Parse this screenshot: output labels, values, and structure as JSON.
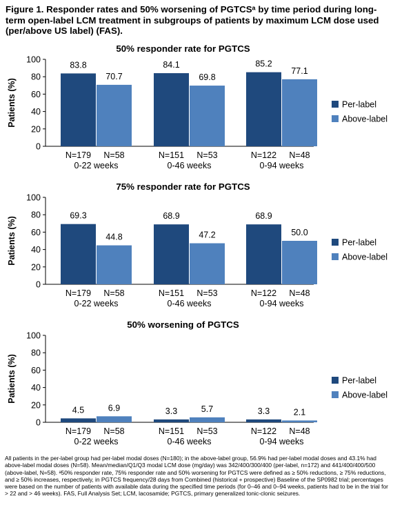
{
  "figure": {
    "title": "Figure 1. Responder rates and 50% worsening of PGTCSᵃ by time period during long-term open-label LCM treatment in subgroups of patients by maximum LCM dose used (per/above US label) (FAS).",
    "footnote": "All patients in the per-label group had per-label modal doses (N=180); in the above-label group, 56.9% had per-label modal doses and 43.1% had above-label modal doses (N=58). Mean/median/Q1/Q3 modal LCM dose (mg/day) was 342/400/300/400 (per-label, n=172) and 441/400/400/500 (above-label, N=58). ᵃ50% responder rate, 75% responder rate and 50% worsening for PGTCS were defined as ≥ 50% reductions, ≥ 75% reductions, and ≥ 50% increases, respectively, in PGTCS frequency/28 days from Combined (historical + prospective) Baseline of the SP0982 trial; percentages were based on the number of patients with available data during the specified time periods (for 0–46 and 0–94 weeks, patients had to be in the trial for > 22 and > 46 weeks). FAS, Full Analysis Set; LCM, lacosamide; PGTCS, primary generalized tonic-clonic seizures."
  },
  "chart_data": [
    {
      "type": "bar",
      "title": "50% responder rate for PGTCS",
      "ylabel": "Patients (%)",
      "ylim": [
        0,
        100
      ],
      "yticks": [
        0,
        20,
        40,
        60,
        80,
        100
      ],
      "grid": false,
      "legend_position": "right",
      "categories": [
        "0-22 weeks",
        "0-46 weeks",
        "0-94 weeks"
      ],
      "n_labels": [
        [
          "N=179",
          "N=58"
        ],
        [
          "N=151",
          "N=53"
        ],
        [
          "N=122",
          "N=48"
        ]
      ],
      "series": [
        {
          "name": "Per-label",
          "color": "#1f497d",
          "values": [
            83.8,
            84.1,
            85.2
          ],
          "labels": [
            "83.8",
            "84.1",
            "85.2"
          ]
        },
        {
          "name": "Above-label",
          "color": "#4f81bd",
          "values": [
            70.7,
            69.8,
            77.1
          ],
          "labels": [
            "70.7",
            "69.8",
            "77.1"
          ]
        }
      ]
    },
    {
      "type": "bar",
      "title": "75% responder rate for PGTCS",
      "ylabel": "Patients (%)",
      "ylim": [
        0,
        100
      ],
      "yticks": [
        0,
        20,
        40,
        60,
        80,
        100
      ],
      "grid": false,
      "legend_position": "right",
      "categories": [
        "0-22 weeks",
        "0-46 weeks",
        "0-94 weeks"
      ],
      "n_labels": [
        [
          "N=179",
          "N=58"
        ],
        [
          "N=151",
          "N=53"
        ],
        [
          "N=122",
          "N=48"
        ]
      ],
      "series": [
        {
          "name": "Per-label",
          "color": "#1f497d",
          "values": [
            69.3,
            68.9,
            68.9
          ],
          "labels": [
            "69.3",
            "68.9",
            "68.9"
          ]
        },
        {
          "name": "Above-label",
          "color": "#4f81bd",
          "values": [
            44.8,
            47.2,
            50.0
          ],
          "labels": [
            "44.8",
            "47.2",
            "50.0"
          ]
        }
      ]
    },
    {
      "type": "bar",
      "title": "50% worsening of PGTCS",
      "ylabel": "Patients (%)",
      "ylim": [
        0,
        100
      ],
      "yticks": [
        0,
        20,
        40,
        60,
        80,
        100
      ],
      "grid": false,
      "legend_position": "right",
      "categories": [
        "0-22 weeks",
        "0-46 weeks",
        "0-94 weeks"
      ],
      "n_labels": [
        [
          "N=179",
          "N=58"
        ],
        [
          "N=151",
          "N=53"
        ],
        [
          "N=122",
          "N=48"
        ]
      ],
      "series": [
        {
          "name": "Per-label",
          "color": "#1f497d",
          "values": [
            4.5,
            3.3,
            3.3
          ],
          "labels": [
            "4.5",
            "3.3",
            "3.3"
          ]
        },
        {
          "name": "Above-label",
          "color": "#4f81bd",
          "values": [
            6.9,
            5.7,
            2.1
          ],
          "labels": [
            "6.9",
            "5.7",
            "2.1"
          ]
        }
      ]
    }
  ]
}
